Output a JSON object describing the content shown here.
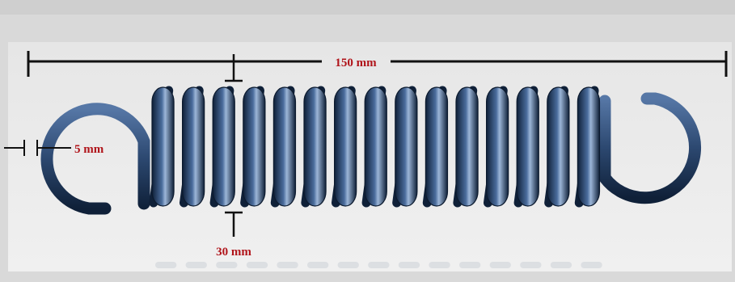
{
  "diagram": {
    "subject": "extension-spring",
    "colors": {
      "background": "#d9d9d9",
      "panel": "#e9e9e9",
      "spring_dark": "#0f2038",
      "spring_mid": "#3e5f8d",
      "spring_light": "#9cb6d8",
      "dimension_line": "#111111",
      "dimension_text": "#b0141a"
    },
    "dimensions": {
      "overall_length": {
        "label": "150 mm",
        "value": 150,
        "unit": "mm"
      },
      "wire_diameter": {
        "label": "5 mm",
        "value": 5,
        "unit": "mm"
      },
      "coil_diameter": {
        "label": "30 mm",
        "value": 30,
        "unit": "mm"
      }
    },
    "coil_count": 15
  }
}
